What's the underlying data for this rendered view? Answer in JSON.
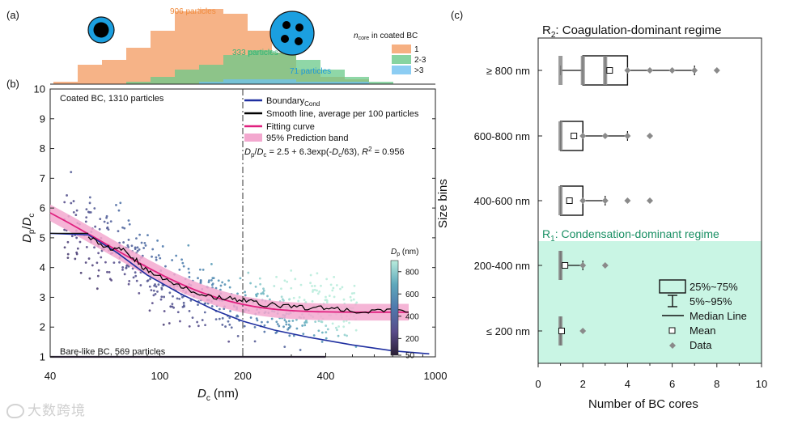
{
  "colors": {
    "orange_hist": "#f4a26c",
    "green_hist": "#69c98a",
    "blue_hist": "#6fc1f0",
    "boundary": "#1f2fa0",
    "smooth": "#000000",
    "fit": "#e0207f",
    "band": "#f3a8cf",
    "r1_bg": "#c9f5e4",
    "r1_text": "#1a9064",
    "box_grey": "#8a8a8a",
    "sphere_blue": "#1b9fe0"
  },
  "panel_a": {
    "label": "(a)",
    "legend_title_main": "n",
    "legend_title_sub": "core",
    "legend_title_rest": " in coated BC",
    "legend_items": [
      "1",
      "2-3",
      ">3"
    ],
    "annotations": [
      {
        "text": "906 particles",
        "color": "#f08a3b"
      },
      {
        "text": "333 particles",
        "color": "#2bb574"
      },
      {
        "text": "71 particles",
        "color": "#1d9ad9"
      }
    ]
  },
  "panel_b": {
    "label": "(b)",
    "top_left_text": "Coated BC, 1310 particles",
    "bottom_left_text": "Bare-like BC, 569 particles",
    "legend": [
      {
        "key": "boundary",
        "text": "Boundary",
        "sub": "Cond"
      },
      {
        "key": "smooth",
        "text": "Smooth line, average per 100 particles",
        "sub": ""
      },
      {
        "key": "fit",
        "text": "Fitting curve",
        "sub": ""
      },
      {
        "key": "band",
        "text": "95% Prediction band",
        "sub": ""
      }
    ],
    "equation": "Dp/Dc = 2.5 + 6.3exp(-Dc/63), R2 = 0.956",
    "xlabel": "Dc (nm)",
    "ylabel": "Dp/Dc",
    "xticks": [
      "40",
      "100",
      "200",
      "400",
      "1000"
    ],
    "yticks": [
      "1",
      "2",
      "3",
      "4",
      "5",
      "6",
      "7",
      "8",
      "9",
      "10"
    ],
    "colorbar_title": "Dp (nm)",
    "colorbar_ticks": [
      "50",
      "200",
      "400",
      "600",
      "800"
    ]
  },
  "panel_c": {
    "label": "(c)",
    "r2_title": "R2: Coagulation-dominant regime",
    "r1_title": "R1: Condensation-dominant regime",
    "xlabel": "Number of BC cores",
    "ylabel": "Size bins",
    "legend": [
      "25%~75%",
      "5%~95%",
      "Median Line",
      "Mean",
      "Data"
    ]
  },
  "watermark": "大数跨境",
  "chart_data": [
    {
      "type": "bar",
      "title": "(a)",
      "xlabel": "",
      "ylabel": "",
      "series": [
        {
          "name": "1",
          "values": [
            1,
            8,
            10,
            15,
            22,
            30,
            31,
            29,
            22,
            13,
            6,
            3,
            2
          ]
        },
        {
          "name": "2-3",
          "values": [
            0,
            1,
            3,
            6,
            8,
            12,
            14,
            13,
            10,
            6,
            3,
            1
          ]
        },
        {
          "name": ">3",
          "values": [
            1,
            2,
            2,
            2,
            1,
            1,
            1
          ]
        }
      ],
      "totals": {
        "1": 906,
        "2-3": 333,
        ">3": 71
      }
    },
    {
      "type": "scatter",
      "title": "(b)",
      "xlabel": "Dc (nm)",
      "ylabel": "Dp/Dc",
      "xscale": "log",
      "xlim": [
        40,
        1000
      ],
      "ylim": [
        1,
        10
      ],
      "vline_x": 200,
      "fit": {
        "a": 2.5,
        "b": 6.3,
        "tau": 63,
        "r2": 0.956,
        "x_range": [
          40,
          800
        ]
      },
      "boundary_curve": {
        "x": [
          40,
          55,
          70,
          90,
          120,
          160,
          200,
          260,
          350,
          500,
          700,
          950
        ],
        "y": [
          5.15,
          5.1,
          4.5,
          3.75,
          3.1,
          2.55,
          2.2,
          1.9,
          1.65,
          1.4,
          1.2,
          1.1
        ]
      },
      "smooth_line": {
        "x": [
          55,
          65,
          75,
          85,
          95,
          110,
          130,
          150,
          180,
          210,
          250,
          300,
          360,
          430,
          530,
          650,
          800
        ],
        "y": [
          5.0,
          4.65,
          4.6,
          4.1,
          3.75,
          3.5,
          3.25,
          3.05,
          2.95,
          2.85,
          2.75,
          2.7,
          2.65,
          2.6,
          2.55,
          2.55,
          2.5
        ]
      },
      "bare_like": {
        "y": 1,
        "x_range": [
          40,
          400
        ],
        "count": 569
      },
      "coated_count": 1310,
      "colorbar": {
        "label": "Dp (nm)",
        "range": [
          50,
          900
        ],
        "ticks": [
          50,
          200,
          400,
          600,
          800
        ]
      }
    },
    {
      "type": "box",
      "title": "(c)",
      "xlabel": "Number of BC cores",
      "ylabel": "Size bins",
      "xlim": [
        0,
        10
      ],
      "categories": [
        "≥ 800 nm",
        "600-800 nm",
        "400-600 nm",
        "200-400 nm",
        "≤ 200 nm"
      ],
      "boxes": [
        {
          "q1": 2,
          "median": 3,
          "q3": 4,
          "mean": 3.2,
          "p5": 1,
          "p95": 7,
          "data": [
            1,
            2,
            3,
            4,
            5,
            6,
            7,
            8
          ]
        },
        {
          "q1": 1,
          "median": 2,
          "q3": 2,
          "mean": 1.6,
          "p5": 1,
          "p95": 4,
          "data": [
            1,
            2,
            3,
            4,
            5
          ]
        },
        {
          "q1": 1,
          "median": 2,
          "q3": 2,
          "mean": 1.4,
          "p5": 1,
          "p95": 3,
          "data": [
            1,
            2,
            3,
            4,
            5
          ]
        },
        {
          "q1": 1,
          "median": 1,
          "q3": 1,
          "mean": 1.2,
          "p5": 1,
          "p95": 2,
          "data": [
            1,
            2,
            3
          ]
        },
        {
          "q1": 1,
          "median": 1,
          "q3": 1,
          "mean": 1.05,
          "p5": 1,
          "p95": 1,
          "data": [
            1,
            2
          ]
        }
      ]
    }
  ]
}
